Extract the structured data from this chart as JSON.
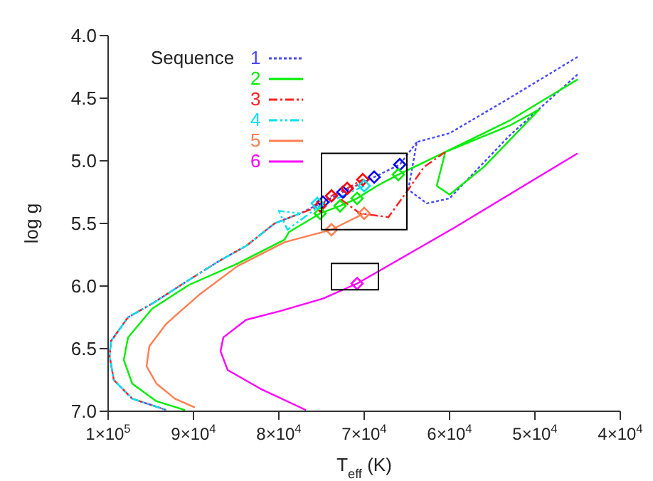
{
  "chart_data": {
    "type": "line",
    "xlabel": "T$_{eff}$ (K)",
    "ylabel": "log g",
    "legend_title": "Sequence",
    "legend": "top left",
    "xlim": [
      100000,
      40000
    ],
    "ylim": [
      7.0,
      4.0
    ],
    "xticks": [
      {
        "value": 100000,
        "label": "1×10$^{5}$"
      },
      {
        "value": 90000,
        "label": "9×10$^{4}$"
      },
      {
        "value": 80000,
        "label": "8×10$^{4}$"
      },
      {
        "value": 70000,
        "label": "7×10$^{4}$"
      },
      {
        "value": 60000,
        "label": "6×10$^{4}$"
      },
      {
        "value": 50000,
        "label": "5×10$^{4}$"
      },
      {
        "value": 40000,
        "label": "4×10$^{4}$"
      }
    ],
    "yticks": [
      {
        "value": 4,
        "label": "4.0"
      },
      4.5,
      {
        "value": 5,
        "label": "5.0"
      },
      5.5,
      {
        "value": 6,
        "label": "6.0"
      },
      6.5,
      {
        "value": 7,
        "label": "7.0"
      }
    ],
    "series": [
      {
        "name": "1",
        "color": "#4848ff",
        "line_style": "dotted",
        "x": [
          45000,
          53000,
          60000,
          63833,
          64833,
          62667,
          60000,
          53000,
          45000,
          null,
          63833,
          65833,
          68833,
          72500,
          74833,
          77500,
          80500,
          83833,
          87000,
          90500,
          94833,
          97667,
          99667,
          99833,
          99333,
          97167,
          93167
        ],
        "values": [
          4.17,
          4.5,
          4.78,
          4.85,
          5.23,
          5.34,
          5.3,
          4.8,
          4.31,
          null,
          4.85,
          5.03,
          5.13,
          5.25,
          5.33,
          5.42,
          5.5,
          5.68,
          5.8,
          5.95,
          6.14,
          6.25,
          6.44,
          6.56,
          6.75,
          6.9,
          6.99
        ]
      },
      {
        "name": "2",
        "color": "#00ee00",
        "line_style": "solid",
        "x": [
          45000,
          53000,
          60500,
          61500,
          60000,
          56000,
          49500,
          53000,
          60500,
          66000,
          68500,
          70833,
          72833,
          75167,
          78833,
          79333,
          84833,
          90500,
          94833,
          97667,
          98167,
          97167,
          94333,
          91000
        ],
        "values": [
          4.35,
          4.68,
          4.93,
          5.2,
          5.27,
          5.05,
          4.59,
          4.72,
          4.93,
          5.11,
          5.2,
          5.3,
          5.36,
          5.42,
          5.57,
          5.63,
          5.82,
          5.99,
          6.18,
          6.41,
          6.59,
          6.78,
          6.92,
          6.99
        ]
      },
      {
        "name": "3",
        "color": "#ff2020",
        "line_style": "dashdot",
        "x": [
          60500,
          63000,
          64833,
          67167,
          70500,
          72667,
          70167,
          72000,
          73833,
          75167,
          77500,
          80500,
          83833,
          87000,
          90500,
          94833,
          97667,
          99667,
          99833,
          99333,
          97167,
          93167
        ],
        "values": [
          4.93,
          5.05,
          5.23,
          5.45,
          5.42,
          5.31,
          5.15,
          5.22,
          5.28,
          5.36,
          5.42,
          5.5,
          5.68,
          5.8,
          5.95,
          6.14,
          6.25,
          6.44,
          6.56,
          6.75,
          6.9,
          6.99
        ]
      },
      {
        "name": "4",
        "color": "#00e0f0",
        "line_style": "dashdotdot",
        "x": [
          70000,
          72500,
          75167,
          77000,
          79000,
          80000,
          77500,
          80500,
          83833,
          87000,
          90500,
          94833,
          97667,
          99667,
          99833,
          99333,
          97167,
          93167
        ],
        "values": [
          5.2,
          5.28,
          5.36,
          5.45,
          5.55,
          5.4,
          5.42,
          5.5,
          5.68,
          5.8,
          5.95,
          6.14,
          6.25,
          6.44,
          6.56,
          6.75,
          6.9,
          6.99
        ]
      },
      {
        "name": "5",
        "color": "#ff7f50",
        "line_style": "solid",
        "x": [
          70000,
          73833,
          79333,
          84833,
          89333,
          93167,
          95167,
          95500,
          94333,
          92167,
          89833
        ],
        "values": [
          5.42,
          5.55,
          5.65,
          5.84,
          6.07,
          6.3,
          6.48,
          6.64,
          6.78,
          6.9,
          6.97
        ]
      },
      {
        "name": "6",
        "color": "#ff00ff",
        "line_style": "solid",
        "x": [
          45000,
          59333,
          70833,
          74833,
          79833,
          83833,
          86500,
          86833,
          86000,
          82167,
          76833
        ],
        "values": [
          4.94,
          5.53,
          5.98,
          6.1,
          6.2,
          6.27,
          6.41,
          6.52,
          6.67,
          6.82,
          6.99
        ]
      },
      {
        "type": "scatter",
        "color": "#0000ff",
        "marker": "diamond",
        "x": [
          65833,
          68833,
          72500,
          74833
        ],
        "values": [
          5.03,
          5.13,
          5.25,
          5.33
        ]
      },
      {
        "type": "scatter",
        "color": "#ff0000",
        "marker": "diamond",
        "x": [
          70167,
          72000,
          73833,
          75167
        ],
        "values": [
          5.15,
          5.22,
          5.28,
          5.36
        ]
      },
      {
        "type": "scatter",
        "color": "#00ee00",
        "marker": "diamond",
        "x": [
          66000,
          70833,
          72833,
          75167
        ],
        "values": [
          5.11,
          5.3,
          5.36,
          5.42
        ]
      },
      {
        "type": "scatter",
        "color": "#00e0f0",
        "marker": "diamond",
        "x": [
          70000,
          75500
        ],
        "values": [
          5.2,
          5.34
        ]
      },
      {
        "type": "scatter",
        "color": "#ff7f50",
        "marker": "diamond",
        "x": [
          70000,
          73833
        ],
        "values": [
          5.42,
          5.55
        ]
      },
      {
        "type": "scatter",
        "color": "#ff00ff",
        "marker": "diamond",
        "x": [
          70833
        ],
        "values": [
          5.98
        ]
      }
    ]
  }
}
